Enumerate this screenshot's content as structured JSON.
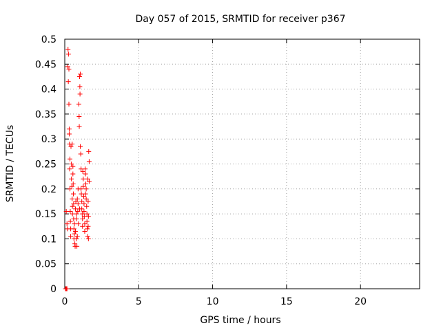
{
  "chart_data": {
    "type": "scatter",
    "title": "Day 057 of 2015, SRMTID for receiver p367",
    "xlabel": "GPS time / hours",
    "ylabel": "SRMTID / TECUs",
    "xlim": [
      0,
      24
    ],
    "ylim": [
      0,
      0.5
    ],
    "x_ticks": [
      "0",
      "5",
      "10",
      "15",
      "20"
    ],
    "y_ticks": [
      "0",
      "0.05",
      "0.1",
      "0.15",
      "0.2",
      "0.25",
      "0.3",
      "0.35",
      "0.4",
      "0.45",
      "0.5"
    ],
    "grid": true,
    "legend": "none",
    "marker": "plus",
    "color": "#ff0000",
    "points": [
      [
        0.05,
        0.0
      ],
      [
        0.08,
        0.0
      ],
      [
        0.12,
        0.0
      ],
      [
        0.15,
        0.0
      ],
      [
        0.1,
        0.155
      ],
      [
        0.15,
        0.13
      ],
      [
        0.18,
        0.12
      ],
      [
        0.2,
        0.445
      ],
      [
        0.22,
        0.48
      ],
      [
        0.24,
        0.415
      ],
      [
        0.25,
        0.47
      ],
      [
        0.28,
        0.44
      ],
      [
        0.28,
        0.37
      ],
      [
        0.3,
        0.32
      ],
      [
        0.3,
        0.31
      ],
      [
        0.32,
        0.29
      ],
      [
        0.33,
        0.24
      ],
      [
        0.35,
        0.26
      ],
      [
        0.35,
        0.2
      ],
      [
        0.37,
        0.155
      ],
      [
        0.38,
        0.135
      ],
      [
        0.4,
        0.12
      ],
      [
        0.4,
        0.105
      ],
      [
        0.42,
        0.285
      ],
      [
        0.45,
        0.25
      ],
      [
        0.45,
        0.22
      ],
      [
        0.48,
        0.205
      ],
      [
        0.5,
        0.29
      ],
      [
        0.5,
        0.18
      ],
      [
        0.52,
        0.165
      ],
      [
        0.52,
        0.15
      ],
      [
        0.55,
        0.245
      ],
      [
        0.55,
        0.23
      ],
      [
        0.57,
        0.21
      ],
      [
        0.58,
        0.19
      ],
      [
        0.6,
        0.17
      ],
      [
        0.6,
        0.14
      ],
      [
        0.62,
        0.12
      ],
      [
        0.62,
        0.1
      ],
      [
        0.65,
        0.13
      ],
      [
        0.65,
        0.11
      ],
      [
        0.68,
        0.09
      ],
      [
        0.7,
        0.085
      ],
      [
        0.72,
        0.115
      ],
      [
        0.72,
        0.16
      ],
      [
        0.75,
        0.175
      ],
      [
        0.78,
        0.15
      ],
      [
        0.8,
        0.14
      ],
      [
        0.8,
        0.1
      ],
      [
        0.82,
        0.085
      ],
      [
        0.85,
        0.105
      ],
      [
        0.88,
        0.155
      ],
      [
        0.9,
        0.17
      ],
      [
        0.92,
        0.13
      ],
      [
        0.95,
        0.37
      ],
      [
        0.97,
        0.345
      ],
      [
        0.98,
        0.325
      ],
      [
        1.0,
        0.425
      ],
      [
        1.02,
        0.405
      ],
      [
        1.03,
        0.39
      ],
      [
        1.05,
        0.43
      ],
      [
        1.05,
        0.285
      ],
      [
        1.08,
        0.27
      ],
      [
        1.1,
        0.24
      ],
      [
        1.1,
        0.2
      ],
      [
        1.12,
        0.19
      ],
      [
        1.15,
        0.175
      ],
      [
        1.15,
        0.16
      ],
      [
        1.18,
        0.15
      ],
      [
        1.2,
        0.14
      ],
      [
        1.2,
        0.125
      ],
      [
        1.22,
        0.235
      ],
      [
        1.25,
        0.22
      ],
      [
        1.25,
        0.205
      ],
      [
        1.28,
        0.185
      ],
      [
        1.3,
        0.17
      ],
      [
        1.3,
        0.155
      ],
      [
        1.32,
        0.145
      ],
      [
        1.35,
        0.13
      ],
      [
        1.35,
        0.115
      ],
      [
        1.38,
        0.24
      ],
      [
        1.4,
        0.23
      ],
      [
        1.42,
        0.21
      ],
      [
        1.45,
        0.2
      ],
      [
        1.45,
        0.18
      ],
      [
        1.48,
        0.165
      ],
      [
        1.5,
        0.15
      ],
      [
        1.5,
        0.135
      ],
      [
        1.52,
        0.12
      ],
      [
        1.55,
        0.105
      ],
      [
        1.55,
        0.22
      ],
      [
        1.58,
        0.175
      ],
      [
        1.6,
        0.145
      ],
      [
        1.62,
        0.275
      ],
      [
        1.65,
        0.255
      ],
      [
        1.65,
        0.215
      ],
      [
        1.6,
        0.1
      ],
      [
        1.58,
        0.125
      ],
      [
        0.85,
        0.18
      ],
      [
        0.9,
        0.2
      ],
      [
        1.0,
        0.16
      ],
      [
        1.4,
        0.19
      ]
    ]
  }
}
